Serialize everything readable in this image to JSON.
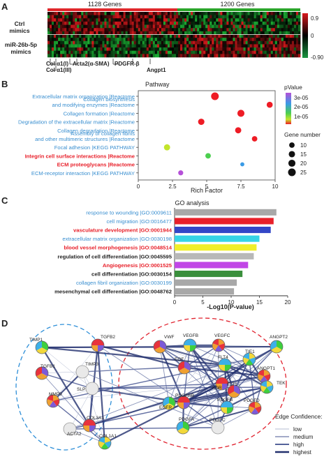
{
  "panel_labels": [
    "A",
    "B",
    "C",
    "D"
  ],
  "panelA": {
    "gene_groups": [
      "1128 Genes",
      "1200 Genes"
    ],
    "row_labels": [
      [
        "Ctrl",
        "mimics"
      ],
      [
        "miR-26b-5p",
        "mimics"
      ]
    ],
    "gene_markers": [
      "Col α1(I)",
      "Col α1(III)",
      "Acta2(α-SMA)",
      "PDGFR-β",
      "Angpt1"
    ],
    "scale_ticks": [
      "0.9",
      "0",
      "-0.90"
    ],
    "colors": {
      "high": "#d7191c",
      "mid": "#000000",
      "low": "#1a9641"
    }
  },
  "panelB": {
    "title": "Pathway",
    "chart_data": {
      "type": "scatter",
      "xlabel": "Rich Factor",
      "title": "Pathway",
      "xlim": [
        0,
        10
      ],
      "xticks": [
        0,
        2.5,
        5,
        7.5,
        10
      ],
      "categories": [
        "Extracellular matrix organization |Reactome",
        "Collagen biosynthesis and modifying enzymes |Reactome",
        "Collagen formation |Reactome",
        "Degradation of the extracellular matrix |Reactome",
        "Collagen degradation |Reactome",
        "Assembly of collagen fibrils and other multimeric structures |Reactome",
        "Focal adhesion |KEGG PATHWAY",
        "Integrin cell surface interactions |Reactome",
        "ECM proteoglycans |Reactome",
        "ECM-receptor interaction |KEGG PATHWAY"
      ],
      "label_lines": [
        [
          "Extracellular matrix organization |Reactome"
        ],
        [
          "Collagen biosynthesis",
          "and modifying enzymes |Reactome"
        ],
        [
          "Collagen formation |Reactome"
        ],
        [
          "Degradation of the extracellular matrix |Reactome"
        ],
        [
          "Collagen degradation |Reactome"
        ],
        [
          "Assembly of collagen fibrils",
          "and other multimeric structures |Reactome"
        ],
        [
          "Focal adhesion |KEGG PATHWAY"
        ],
        [
          "Integrin cell surface interactions |Reactome"
        ],
        [
          "ECM proteoglycans |Reactome"
        ],
        [
          "ECM-receptor interaction |KEGG PATHWAY"
        ]
      ],
      "label_colors": [
        "#3a8fd0",
        "#3a8fd0",
        "#3a8fd0",
        "#3a8fd0",
        "#3a8fd0",
        "#3a8fd0",
        "#3a8fd0",
        "#e8202a",
        "#e8202a",
        "#3a8fd0"
      ],
      "x": [
        5.6,
        9.6,
        7.5,
        4.6,
        7.3,
        8.5,
        2.1,
        5.1,
        7.6,
        3.1
      ],
      "gene_number": [
        25,
        13,
        20,
        15,
        14,
        10,
        14,
        10,
        4,
        8
      ],
      "pvalue": [
        1e-07,
        1e-07,
        1e-07,
        1e-07,
        1e-07,
        1e-07,
        1.6e-05,
        1e-05,
        2.4e-05,
        3.3e-05
      ],
      "colors": [
        "#ee1c25",
        "#ee1c25",
        "#ee1c25",
        "#ee1c25",
        "#ee1c25",
        "#ee1c25",
        "#c3e52b",
        "#4ccf4f",
        "#3a9be6",
        "#b550d8"
      ],
      "legend_color_title": "pValue",
      "legend_color_ticks": [
        "3e-05",
        "2e-05",
        "1e-05"
      ],
      "legend_size_title": "Gene number",
      "legend_size_ticks": [
        10,
        15,
        20,
        25
      ]
    }
  },
  "panelC": {
    "title": "GO analysis",
    "chart_data": {
      "type": "bar",
      "orientation": "horizontal",
      "title": "GO analysis",
      "xlabel": "-Log10(P-value)",
      "xlim": [
        0,
        20
      ],
      "xticks": [
        0,
        5,
        10,
        15,
        20
      ],
      "categories": [
        "response to wounding |GO:0009611",
        "cell migration |GO:0016477",
        "vasculature development |GO:0001944",
        "extracellular matrix organization |GO:0030198",
        "blood vessel morphogenesis |GO:0048514",
        "regulation of cell differentiation |GO:0045595",
        "Angiogenesis |GO:0001525",
        "cell differentiation |GO:0030154",
        "collagen fibril organization |GO:0030199",
        "mesenchymal cell differentiation |GO:0048762"
      ],
      "values": [
        18.0,
        17.5,
        17.0,
        15.0,
        14.5,
        14.0,
        13.0,
        12.0,
        11.0,
        10.5
      ],
      "bar_colors": [
        "#a8a8a8",
        "#e8202a",
        "#3347c7",
        "#36d4e6",
        "#f0ef2a",
        "#b8b8b8",
        "#c146e6",
        "#3a8f3c",
        "#a8a8a8",
        "#a8a8a8"
      ],
      "label_colors": [
        "#3a8fd0",
        "#3a8fd0",
        "#e8202a",
        "#3a8fd0",
        "#e8202a",
        "#222222",
        "#e8202a",
        "#222222",
        "#3a8fd0",
        "#222222"
      ]
    }
  },
  "panelD": {
    "nodes": [
      "TIMP1",
      "TGFB2",
      "TIMP3",
      "TGFB1",
      "SLP",
      "MMP9",
      "ACTA2",
      "COL3A1",
      "COL1A1",
      "VWF",
      "VEGFB",
      "VEGFC",
      "ANGPT2",
      "KDR",
      "TIE1",
      "EGF",
      "FLT4",
      "ANGPT1",
      "EGFR",
      "PDGFRB",
      "TEK",
      "FLT1",
      "PDGFB",
      "PDGFD",
      "PDGFA",
      "PDGFC"
    ],
    "legend_title": "Edge Confidence:",
    "legend_items": [
      "low",
      "medium",
      "high",
      "highest"
    ]
  }
}
